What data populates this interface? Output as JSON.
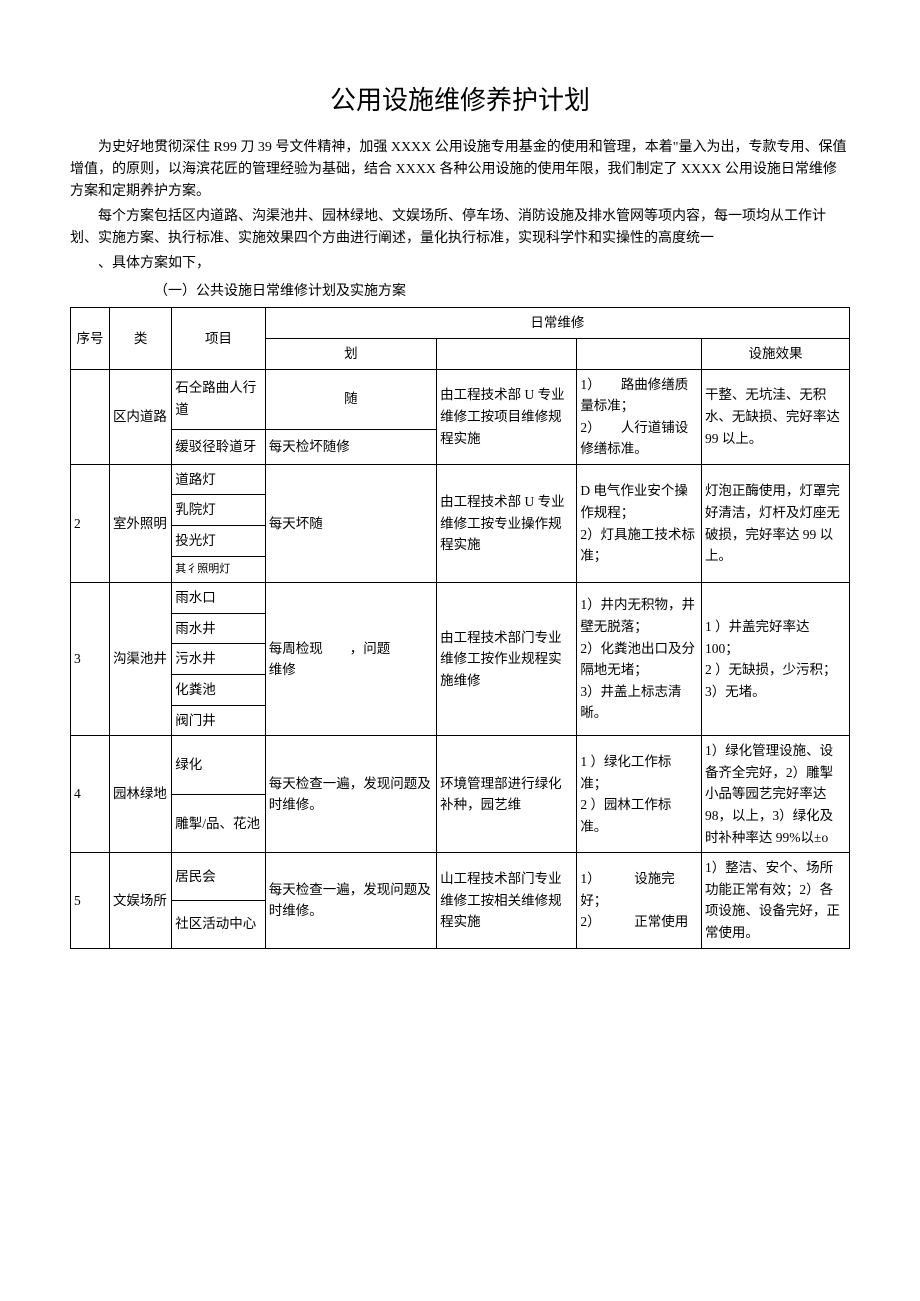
{
  "title": "公用设施维修养护计划",
  "paragraphs": {
    "p1": "为史好地贯彻深住 R99 刀 39 号文件精神，加强 XXXX 公用设施专用基金的使用和管理，本着\"量入为出，专款专用、保值增值，的原则，以海滨花匠的管理经验为基础，结合 XXXX 各种公用设施的使用年限，我们制定了 XXXX 公用设施日常维修方案和定期养护方案。",
    "p2": "每个方案包括区内道路、沟渠池井、园林绿地、文娱场所、停车场、消防设施及排水管网等项内容，每一项均从工作计划、实施方案、执行标准、实施效果四个方曲进行阐述，量化执行标准，实现科学忭和实操性的高度统一",
    "p3": "、具体方案如下，",
    "sub": "（一）公共设施日常维修计划及实施方案"
  },
  "headers": {
    "seq": "序号",
    "cat": "类",
    "item": "项目",
    "daily": "日常维修",
    "plan": "划",
    "effect": "设施效果"
  },
  "rows": {
    "r1": {
      "seq": "",
      "cat": "区内道路",
      "items": [
        "石仝路曲人行道",
        "缓驳径聆道牙"
      ],
      "plan_a": "随",
      "plan_b": "每天检坏随修",
      "impl": "由工程技术部 U 专业维修工按项目维修规程实施",
      "std": "1）　　路曲修缮质量标准；\n2）　　人行道铺设修缮标准。",
      "effect": "干整、无坑洼、无积水、无缺损、完好率达 99 以上。"
    },
    "r2": {
      "seq": "2",
      "cat": "室外照明",
      "items": [
        "道路灯",
        "乳院灯",
        "投光灯",
        "其彳照明灯"
      ],
      "plan": "每天坏随",
      "impl": "由工程技术部 U 专业维修工按专业操作规程实施",
      "std": "D 电气作业安个操作规程；\n2）灯具施工技术标准；",
      "effect": "灯泡正酶使用，灯罩完好清洁，灯杆及灯座无破损，完好率达 99 以上。"
    },
    "r3": {
      "seq": "3",
      "cat": "沟渠池井",
      "items": [
        "雨水口",
        "雨水井",
        "污水井",
        "化粪池",
        "阀门井"
      ],
      "plan": "每周检现　　，问题　　　　维修",
      "impl": "由工程技术部门专业维修工按作业规程实施维修",
      "std": "1）井内无积物，井壁无脱落；\n2）化粪池出口及分隔地无堵；\n3）井盖上标志清晰。",
      "effect": "1 ）井盖完好率达 100；\n2 ）无缺损，少污积；\n3）无堵。"
    },
    "r4": {
      "seq": "4",
      "cat": "园林绿地",
      "items": [
        "绿化",
        "雕掣/品、花池"
      ],
      "plan": "每天检查一遍，发现问题及时维修。",
      "impl": "环境管理部进行绿化补种，园艺维",
      "std": "1 ）绿化工作标准；\n2 ）园林工作标准。",
      "effect": "1）绿化管理设施、设备齐全完好，2）雕掣小品等园艺完好率达 98，以上，3）绿化及时补种率达 99%以±o"
    },
    "r5": {
      "seq": "5",
      "cat": "文娱场所",
      "items": [
        "居民会",
        "社区活动中心"
      ],
      "plan": "每天检查一遍，发现问题及时维修。",
      "impl": "山工程技术部门专业维修工按相关维修规程实施",
      "std": "1）　　　设施完好；\n2）　　　正常使用",
      "effect": "1）整洁、安个、场所功能正常有效；2）各项设施、设备完好，正常使用。"
    }
  }
}
